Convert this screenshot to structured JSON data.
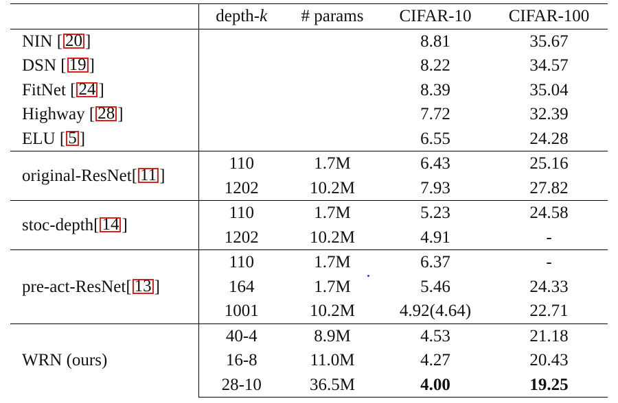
{
  "headers": [
    "",
    "depth-k",
    "# params",
    "CIFAR-10",
    "CIFAR-100"
  ],
  "groups": [
    {
      "rows": [
        {
          "method": "NIN",
          "ref": "20",
          "depth": "",
          "params": "",
          "c10": "8.81",
          "c100": "35.67"
        },
        {
          "method": "DSN",
          "ref": "19",
          "depth": "",
          "params": "",
          "c10": "8.22",
          "c100": "34.57"
        },
        {
          "method": "FitNet",
          "ref": "24",
          "depth": "",
          "params": "",
          "c10": "8.39",
          "c100": "35.04"
        },
        {
          "method": "Highway",
          "ref": "28",
          "depth": "",
          "params": "",
          "c10": "7.72",
          "c100": "32.39"
        },
        {
          "method": "ELU",
          "ref": "5",
          "depth": "",
          "params": "",
          "c10": "6.55",
          "c100": "24.28"
        }
      ]
    },
    {
      "method": "original-ResNet",
      "ref": "11",
      "rows": [
        {
          "depth": "110",
          "params": "1.7M",
          "c10": "6.43",
          "c100": "25.16"
        },
        {
          "depth": "1202",
          "params": "10.2M",
          "c10": "7.93",
          "c100": "27.82"
        }
      ]
    },
    {
      "method": "stoc-depth",
      "ref": "14",
      "rows": [
        {
          "depth": "110",
          "params": "1.7M",
          "c10": "5.23",
          "c100": "24.58"
        },
        {
          "depth": "1202",
          "params": "10.2M",
          "c10": "4.91",
          "c100": "-"
        }
      ]
    },
    {
      "method": "pre-act-ResNet",
      "ref": "13",
      "rows": [
        {
          "depth": "110",
          "params": "1.7M",
          "c10": "6.37",
          "c100": "-"
        },
        {
          "depth": "164",
          "params": "1.7M",
          "c10": "5.46",
          "c100": "24.33"
        },
        {
          "depth": "1001",
          "params": "10.2M",
          "c10": "4.92(4.64)",
          "c100": "22.71"
        }
      ]
    },
    {
      "method": "WRN (ours)",
      "ref": "",
      "rows": [
        {
          "depth": "40-4",
          "params": "8.9M",
          "c10": "4.53",
          "c100": "21.18"
        },
        {
          "depth": "16-8",
          "params": "11.0M",
          "c10": "4.27",
          "c100": "20.43"
        },
        {
          "depth": "28-10",
          "params": "36.5M",
          "c10": "4.00",
          "c100": "19.25"
        }
      ]
    }
  ],
  "emphasis_color": "#000000",
  "ref_box_color": "#e0201a"
}
